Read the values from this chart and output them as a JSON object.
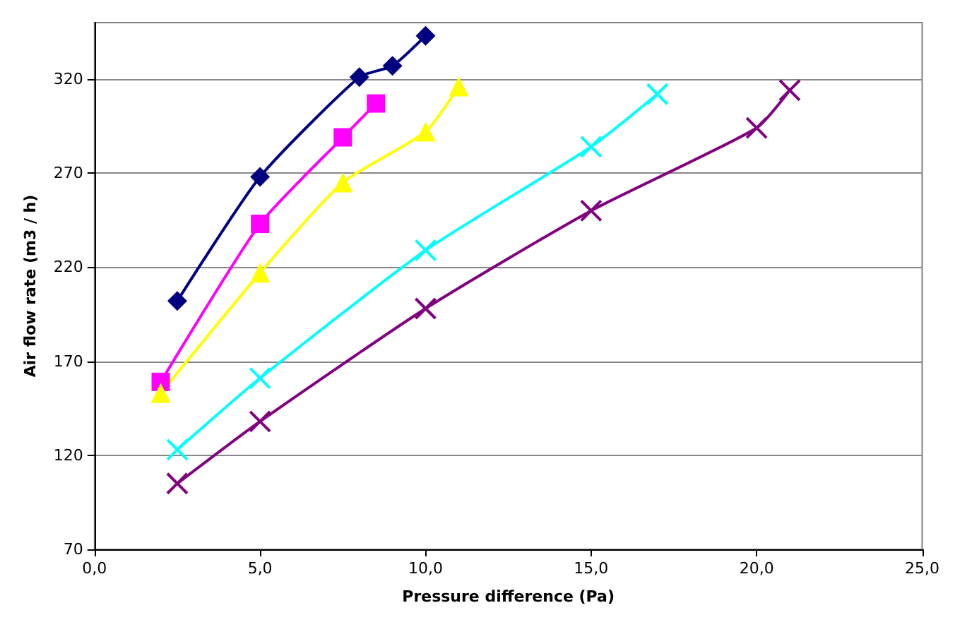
{
  "chart_data": {
    "type": "line",
    "xlabel": "Pressure difference (Pa)",
    "ylabel": "Air flow rate (m3 / h)",
    "xlim": [
      0,
      25
    ],
    "xticks": [
      {
        "value": 0,
        "label": "0,0"
      },
      {
        "value": 5,
        "label": "5,0"
      },
      {
        "value": 10,
        "label": "10,0"
      },
      {
        "value": 15,
        "label": "15,0"
      },
      {
        "value": 20,
        "label": "20,0"
      },
      {
        "value": 25,
        "label": "25,0"
      }
    ],
    "ylim": [
      70,
      350
    ],
    "yticks": [
      70,
      120,
      170,
      220,
      270,
      320
    ],
    "grid": "y",
    "line_style": "solid",
    "series": [
      {
        "color": "#000080",
        "marker": "diamond",
        "x": [
          2.5,
          5,
          8,
          9,
          10
        ],
        "values": [
          202,
          268,
          321,
          327,
          343
        ]
      },
      {
        "color": "#ff00ff",
        "marker": "square",
        "x": [
          2,
          5,
          7.5,
          8.5
        ],
        "values": [
          159,
          243,
          289,
          307
        ]
      },
      {
        "color": "#ffff00",
        "marker": "triangle",
        "x": [
          2,
          5,
          7.5,
          10,
          11
        ],
        "values": [
          153,
          217,
          265,
          292,
          316
        ]
      },
      {
        "color": "#00ffff",
        "marker": "cross",
        "x": [
          2.5,
          5,
          10,
          15,
          17
        ],
        "values": [
          123,
          161,
          229,
          284,
          312
        ]
      },
      {
        "color": "#800080",
        "marker": "cross",
        "x": [
          2.5,
          5,
          10,
          15,
          20,
          21
        ],
        "values": [
          105,
          138,
          198,
          250,
          294,
          314
        ]
      }
    ]
  }
}
